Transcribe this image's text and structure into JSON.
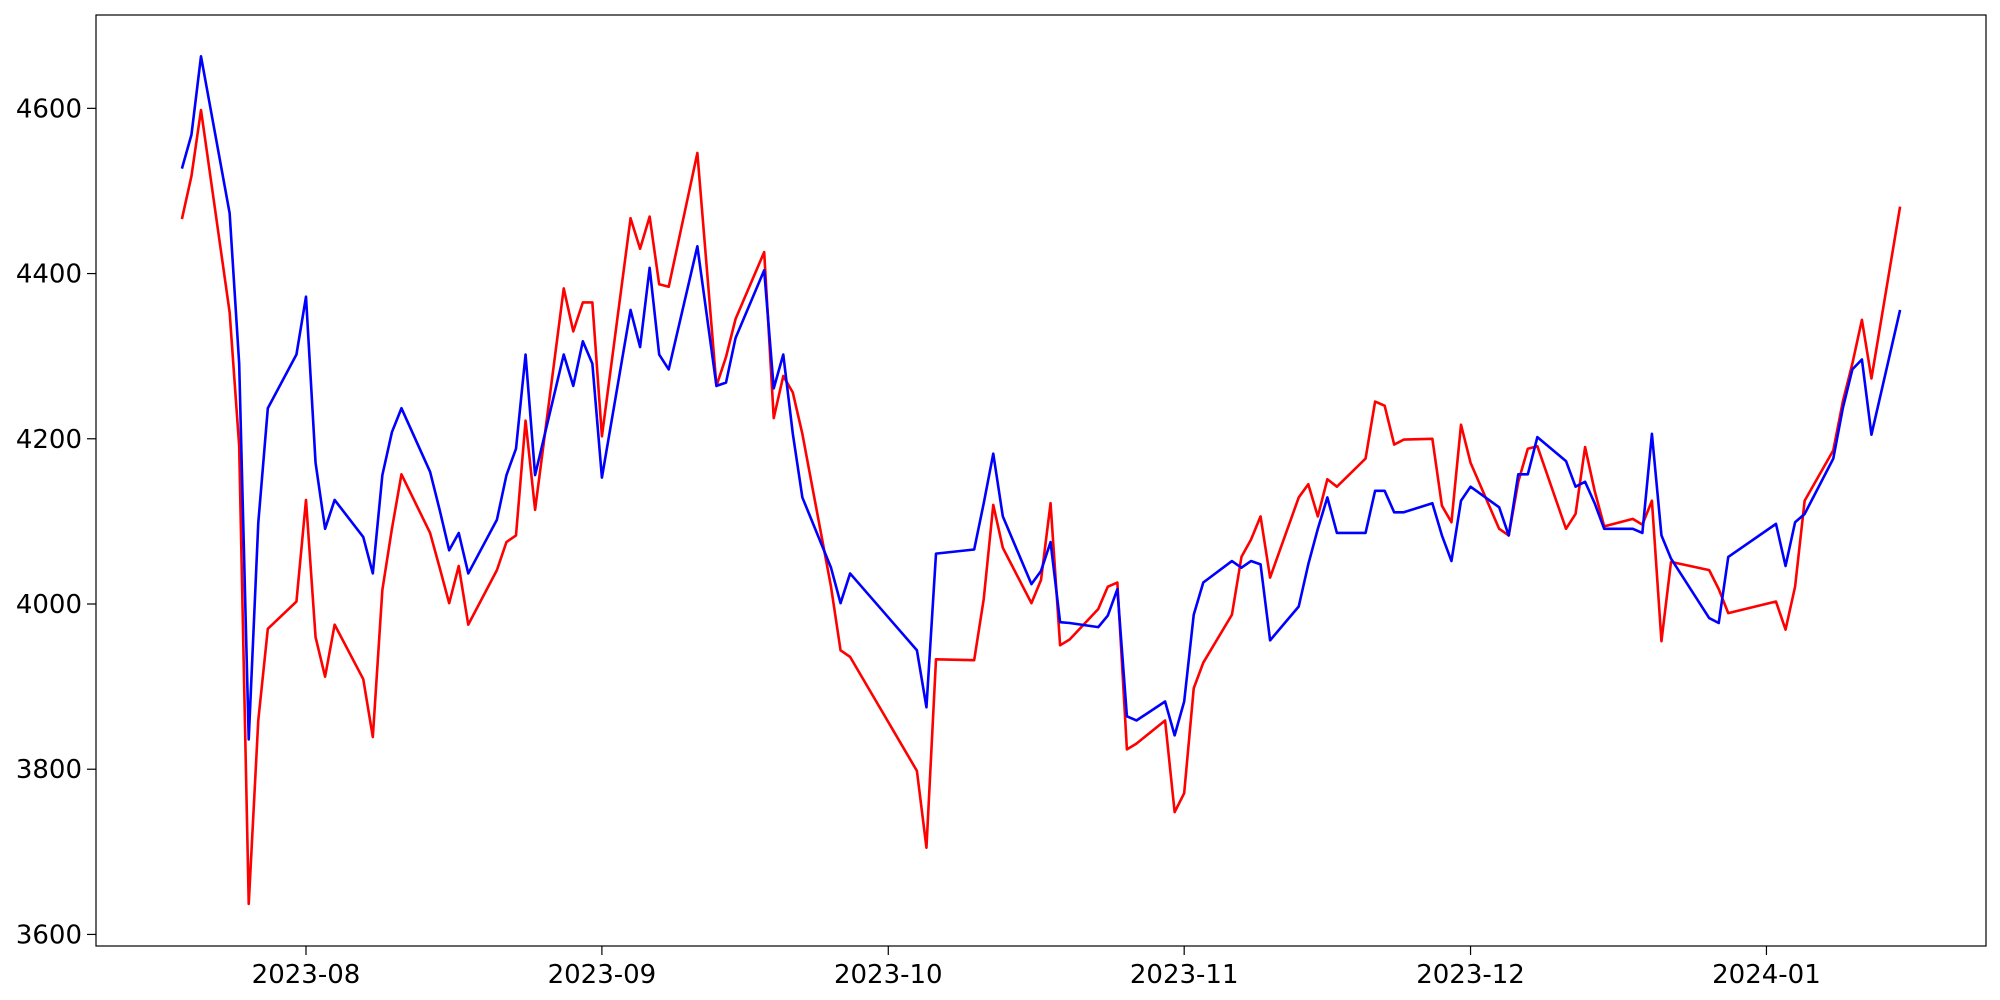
{
  "chart_data": {
    "type": "line",
    "x": [
      "2023-07-19",
      "2023-07-20",
      "2023-07-21",
      "2023-07-24",
      "2023-07-25",
      "2023-07-26",
      "2023-07-27",
      "2023-07-28",
      "2023-07-31",
      "2023-08-01",
      "2023-08-02",
      "2023-08-03",
      "2023-08-04",
      "2023-08-07",
      "2023-08-08",
      "2023-08-09",
      "2023-08-10",
      "2023-08-11",
      "2023-08-14",
      "2023-08-15",
      "2023-08-16",
      "2023-08-17",
      "2023-08-18",
      "2023-08-21",
      "2023-08-22",
      "2023-08-23",
      "2023-08-24",
      "2023-08-25",
      "2023-08-28",
      "2023-08-29",
      "2023-08-30",
      "2023-08-31",
      "2023-09-01",
      "2023-09-04",
      "2023-09-05",
      "2023-09-06",
      "2023-09-07",
      "2023-09-08",
      "2023-09-11",
      "2023-09-13",
      "2023-09-14",
      "2023-09-15",
      "2023-09-18",
      "2023-09-19",
      "2023-09-20",
      "2023-09-21",
      "2023-09-22",
      "2023-09-25",
      "2023-09-26",
      "2023-09-27",
      "2023-10-04",
      "2023-10-05",
      "2023-10-06",
      "2023-10-10",
      "2023-10-11",
      "2023-10-12",
      "2023-10-13",
      "2023-10-16",
      "2023-10-17",
      "2023-10-18",
      "2023-10-19",
      "2023-10-20",
      "2023-10-23",
      "2023-10-24",
      "2023-10-25",
      "2023-10-26",
      "2023-10-27",
      "2023-10-30",
      "2023-10-31",
      "2023-11-01",
      "2023-11-02",
      "2023-11-03",
      "2023-11-06",
      "2023-11-07",
      "2023-11-08",
      "2023-11-09",
      "2023-11-10",
      "2023-11-13",
      "2023-11-14",
      "2023-11-15",
      "2023-11-16",
      "2023-11-17",
      "2023-11-20",
      "2023-11-21",
      "2023-11-22",
      "2023-11-23",
      "2023-11-24",
      "2023-11-27",
      "2023-11-28",
      "2023-11-29",
      "2023-11-30",
      "2023-12-01",
      "2023-12-04",
      "2023-12-05",
      "2023-12-06",
      "2023-12-07",
      "2023-12-08",
      "2023-12-11",
      "2023-12-12",
      "2023-12-13",
      "2023-12-14",
      "2023-12-15",
      "2023-12-18",
      "2023-12-19",
      "2023-12-20",
      "2023-12-21",
      "2023-12-22",
      "2023-12-26",
      "2023-12-27",
      "2023-12-28",
      "2024-01-02",
      "2024-01-03",
      "2024-01-04",
      "2024-01-05",
      "2024-01-08",
      "2024-01-09",
      "2024-01-10",
      "2024-01-11",
      "2024-01-12",
      "2024-01-15"
    ],
    "series": [
      {
        "color": "#ff0000",
        "values": [
          4466,
          4518,
          4598,
          4353,
          4191,
          3637,
          3859,
          3970,
          4003,
          4126,
          3960,
          3912,
          3975,
          3909,
          3839,
          4017,
          4091,
          4157,
          4086,
          4044,
          4001,
          4046,
          3975,
          4041,
          4075,
          4083,
          4222,
          4114,
          4382,
          4330,
          4365,
          4365,
          4203,
          4467,
          4430,
          4469,
          4387,
          4384,
          4546,
          4264,
          4299,
          4345,
          4426,
          4225,
          4276,
          4256,
          4206,
          4021,
          3944,
          3936,
          3798,
          3705,
          3933,
          3932,
          4006,
          4120,
          4068,
          4001,
          4029,
          4122,
          3950,
          3957,
          3994,
          4021,
          4026,
          3824,
          3831,
          3859,
          3748,
          3771,
          3898,
          3929,
          3987,
          4057,
          4078,
          4106,
          4032,
          4129,
          4145,
          4106,
          4151,
          4142,
          4176,
          4245,
          4240,
          4193,
          4199,
          4200,
          4119,
          4099,
          4217,
          4171,
          4091,
          4083,
          4148,
          4188,
          4191,
          4091,
          4109,
          4190,
          4137,
          4094,
          4103,
          4096,
          4125,
          3955,
          4051,
          4041,
          4018,
          3989,
          4003,
          3969,
          4021,
          4125,
          4186,
          4245,
          4291,
          4344,
          4273,
          4481
        ]
      },
      {
        "color": "#0000ff",
        "values": [
          4527,
          4568,
          4663,
          4473,
          4291,
          3836,
          4098,
          4237,
          4302,
          4372,
          4171,
          4091,
          4126,
          4081,
          4037,
          4156,
          4208,
          4237,
          4160,
          4114,
          4065,
          4086,
          4037,
          4102,
          4156,
          4188,
          4302,
          4156,
          4302,
          4264,
          4318,
          4291,
          4153,
          4356,
          4311,
          4407,
          4302,
          4284,
          4433,
          4264,
          4268,
          4322,
          4404,
          4261,
          4302,
          4206,
          4129,
          4044,
          4001,
          4037,
          3944,
          3875,
          4061,
          4066,
          4122,
          4182,
          4106,
          4024,
          4040,
          4075,
          3978,
          3977,
          3972,
          3986,
          4018,
          3864,
          3859,
          3882,
          3841,
          3882,
          3987,
          4026,
          4052,
          4044,
          4052,
          4048,
          3956,
          3997,
          4048,
          4091,
          4129,
          4086,
          4086,
          4137,
          4137,
          4111,
          4111,
          4122,
          4083,
          4052,
          4125,
          4142,
          4117,
          4083,
          4157,
          4157,
          4202,
          4173,
          4142,
          4148,
          4122,
          4091,
          4091,
          4086,
          4206,
          4083,
          4055,
          3983,
          3977,
          4057,
          4097,
          4046,
          4099,
          4109,
          4176,
          4237,
          4284,
          4296,
          4205,
          4356
        ]
      }
    ],
    "xlim": [
      "2023-07-10",
      "2024-01-24"
    ],
    "xticks": [
      {
        "value": "2023-08-01",
        "label": "2023-08"
      },
      {
        "value": "2023-09-01",
        "label": "2023-09"
      },
      {
        "value": "2023-10-01",
        "label": "2023-10"
      },
      {
        "value": "2023-11-01",
        "label": "2023-11"
      },
      {
        "value": "2023-12-01",
        "label": "2023-12"
      },
      {
        "value": "2024-01-01",
        "label": "2024-01"
      }
    ],
    "ylim": [
      3586,
      4713
    ],
    "yticks": [
      3600,
      3800,
      4000,
      4200,
      4400,
      4600
    ],
    "grid": false
  }
}
